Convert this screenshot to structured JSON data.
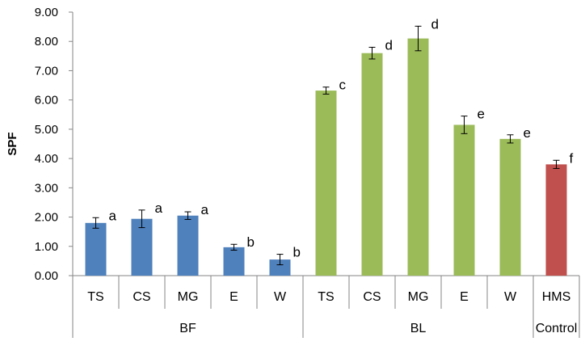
{
  "chart_data": {
    "type": "bar",
    "ylabel": "SPF",
    "xlabel": "",
    "ylim": [
      0,
      9
    ],
    "ytick_step": 1,
    "ytick_labels": [
      "0.00",
      "1.00",
      "2.00",
      "3.00",
      "4.00",
      "5.00",
      "6.00",
      "7.00",
      "8.00",
      "9.00"
    ],
    "grid": false,
    "legend": "none",
    "colors": {
      "BF": "#4F81BD",
      "BL": "#9BBB59",
      "Control": "#C0504D"
    },
    "groups": [
      {
        "label": "BF",
        "bars": [
          {
            "category": "TS",
            "value": 1.8,
            "error": 0.18,
            "letter": "a"
          },
          {
            "category": "CS",
            "value": 1.94,
            "error": 0.3,
            "letter": "a"
          },
          {
            "category": "MG",
            "value": 2.05,
            "error": 0.13,
            "letter": "a"
          },
          {
            "category": "E",
            "value": 0.97,
            "error": 0.1,
            "letter": "b"
          },
          {
            "category": "W",
            "value": 0.55,
            "error": 0.18,
            "letter": "b"
          }
        ]
      },
      {
        "label": "BL",
        "bars": [
          {
            "category": "TS",
            "value": 6.32,
            "error": 0.12,
            "letter": "c"
          },
          {
            "category": "CS",
            "value": 7.6,
            "error": 0.2,
            "letter": "d"
          },
          {
            "category": "MG",
            "value": 8.1,
            "error": 0.42,
            "letter": "d"
          },
          {
            "category": "E",
            "value": 5.15,
            "error": 0.3,
            "letter": "e"
          },
          {
            "category": "W",
            "value": 4.67,
            "error": 0.14,
            "letter": "e"
          }
        ]
      },
      {
        "label": "Control",
        "bars": [
          {
            "category": "HMS",
            "value": 3.8,
            "error": 0.14,
            "letter": "f"
          }
        ]
      }
    ]
  }
}
